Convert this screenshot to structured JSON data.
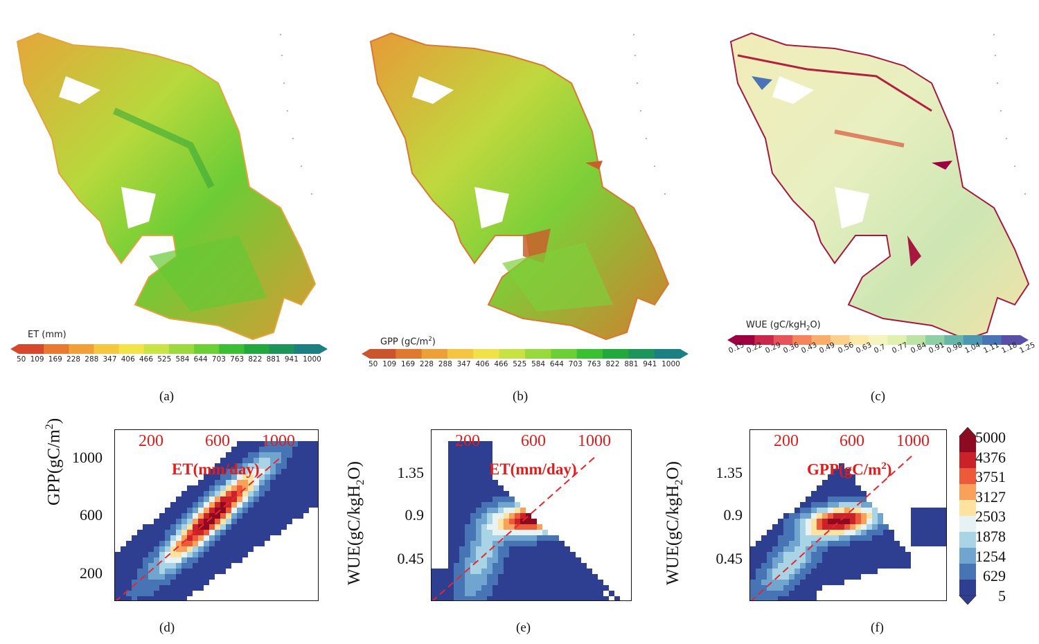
{
  "maps": [
    {
      "id": "a",
      "caption": "(a)",
      "colorbar_title": "ET (mm)",
      "ticks": [
        "50",
        "109",
        "169",
        "228",
        "288",
        "347",
        "406",
        "466",
        "525",
        "584",
        "644",
        "703",
        "763",
        "822",
        "881",
        "941",
        "1000"
      ],
      "colors": [
        "#d7472c",
        "#e8792f",
        "#f0a036",
        "#f6c83f",
        "#f2e448",
        "#c9e345",
        "#9cd93c",
        "#6ccf35",
        "#3bbf32",
        "#22a83c",
        "#1d9459",
        "#1c7f80"
      ]
    },
    {
      "id": "b",
      "caption": "(b)",
      "colorbar_title": "GPP (gC/m²)",
      "ticks": [
        "50",
        "109",
        "169",
        "228",
        "288",
        "347",
        "406",
        "466",
        "525",
        "584",
        "644",
        "703",
        "763",
        "822",
        "881",
        "941",
        "1000"
      ],
      "colors": [
        "#c8552d",
        "#dd7a30",
        "#eba039",
        "#f4c542",
        "#f0e14b",
        "#c8e246",
        "#9ad93e",
        "#6ccf37",
        "#3bbf33",
        "#22a83d",
        "#1c945a",
        "#1c7f81"
      ]
    },
    {
      "id": "c",
      "caption": "(c)",
      "colorbar_title": "WUE (gC/kgH₂O)",
      "ticks": [
        "0.15",
        "0.22",
        "0.29",
        "0.36",
        "0.43",
        "0.49",
        "0.56",
        "0.63",
        "0.7",
        "0.77",
        "0.84",
        "0.91",
        "0.98",
        "1.04",
        "1.11",
        "1.18",
        "1.25"
      ],
      "colors": [
        "#9e0142",
        "#c9284a",
        "#e4545a",
        "#f4845a",
        "#f9ac6b",
        "#fcd08c",
        "#fde9aa",
        "#f5f4c0",
        "#e1efb0",
        "#bde2a6",
        "#90cfa4",
        "#67b7a8",
        "#4d98b1",
        "#4a74b4",
        "#5a4fa8"
      ]
    }
  ],
  "colorbar": {
    "labels": [
      "5000",
      "4376",
      "3751",
      "3127",
      "2503",
      "1878",
      "1254",
      "629",
      "5"
    ],
    "colors": [
      "#8e0a20",
      "#cb2128",
      "#ec5a3a",
      "#f9a05a",
      "#fde2a0",
      "#e6f2f4",
      "#a8d4e6",
      "#6fa5cf",
      "#4674b5",
      "#2e3f92"
    ]
  },
  "chart_data": [
    {
      "id": "d",
      "type": "heatmap",
      "caption": "(d)",
      "ylabel": "GPP(gC/m²)",
      "xlabel_top": "ET(mm/day)",
      "x_ticks": [
        "200",
        "600",
        "1000"
      ],
      "y_ticks": [
        "1000",
        "600",
        "200"
      ],
      "xlim": [
        50,
        1100
      ],
      "ylim": [
        50,
        1250
      ]
    },
    {
      "id": "e",
      "type": "heatmap",
      "caption": "(e)",
      "ylabel": "WUE(gC/kgH₂O)",
      "xlabel_top": "ET(mm/day)",
      "x_ticks": [
        "200",
        "600",
        "1000"
      ],
      "y_ticks": [
        "1.35",
        "0.9",
        "0.45"
      ],
      "xlim": [
        50,
        1100
      ],
      "ylim": [
        0,
        1.8
      ]
    },
    {
      "id": "f",
      "type": "heatmap",
      "caption": "(f)",
      "ylabel": "WUE(gC/kgH₂O)",
      "xlabel_top": "GPP(gC/m²)",
      "x_ticks": [
        "200",
        "600",
        "1000"
      ],
      "y_ticks": [
        "1.35",
        "0.9",
        "0.45"
      ],
      "xlim": [
        50,
        1100
      ],
      "ylim": [
        0,
        1.8
      ]
    }
  ]
}
